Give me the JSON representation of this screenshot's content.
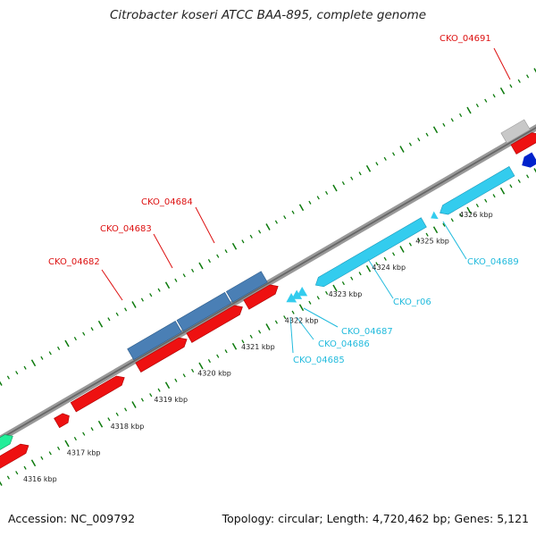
{
  "title": "Citrobacter koseri ATCC BAA-895, complete genome",
  "footer": {
    "accession": "Accession: NC_009792",
    "summary": "Topology: circular; Length: 4,720,462 bp; Genes: 5,121"
  },
  "colors": {
    "forward_cds": "#ee1111",
    "reverse_cds": "#33ccee",
    "rna_gene": "#0022cc",
    "pseudogene": "#c8c8c8",
    "other_gene": "#22ee99",
    "operon": "#4a7fb5",
    "label_forward": "#dd1111",
    "label_reverse": "#22bbdd",
    "tick": "#0c7a0c",
    "backbone": "#888888"
  },
  "scale_labels": [
    "4316 kbp",
    "4317 kbp",
    "4318 kbp",
    "4319 kbp",
    "4320 kbp",
    "4321 kbp",
    "4322 kbp",
    "4323 kbp",
    "4324 kbp",
    "4325 kbp",
    "4326 kbp"
  ],
  "gene_labels": [
    {
      "text": "CKO_04682",
      "strand": "forward"
    },
    {
      "text": "CKO_04683",
      "strand": "forward"
    },
    {
      "text": "CKO_04684",
      "strand": "forward"
    },
    {
      "text": "CKO_04691",
      "strand": "forward"
    },
    {
      "text": "CKO_04685",
      "strand": "reverse"
    },
    {
      "text": "CKO_04686",
      "strand": "reverse"
    },
    {
      "text": "CKO_04687",
      "strand": "reverse"
    },
    {
      "text": "CKO_r06",
      "strand": "reverse"
    },
    {
      "text": "CKO_04689",
      "strand": "reverse"
    }
  ]
}
